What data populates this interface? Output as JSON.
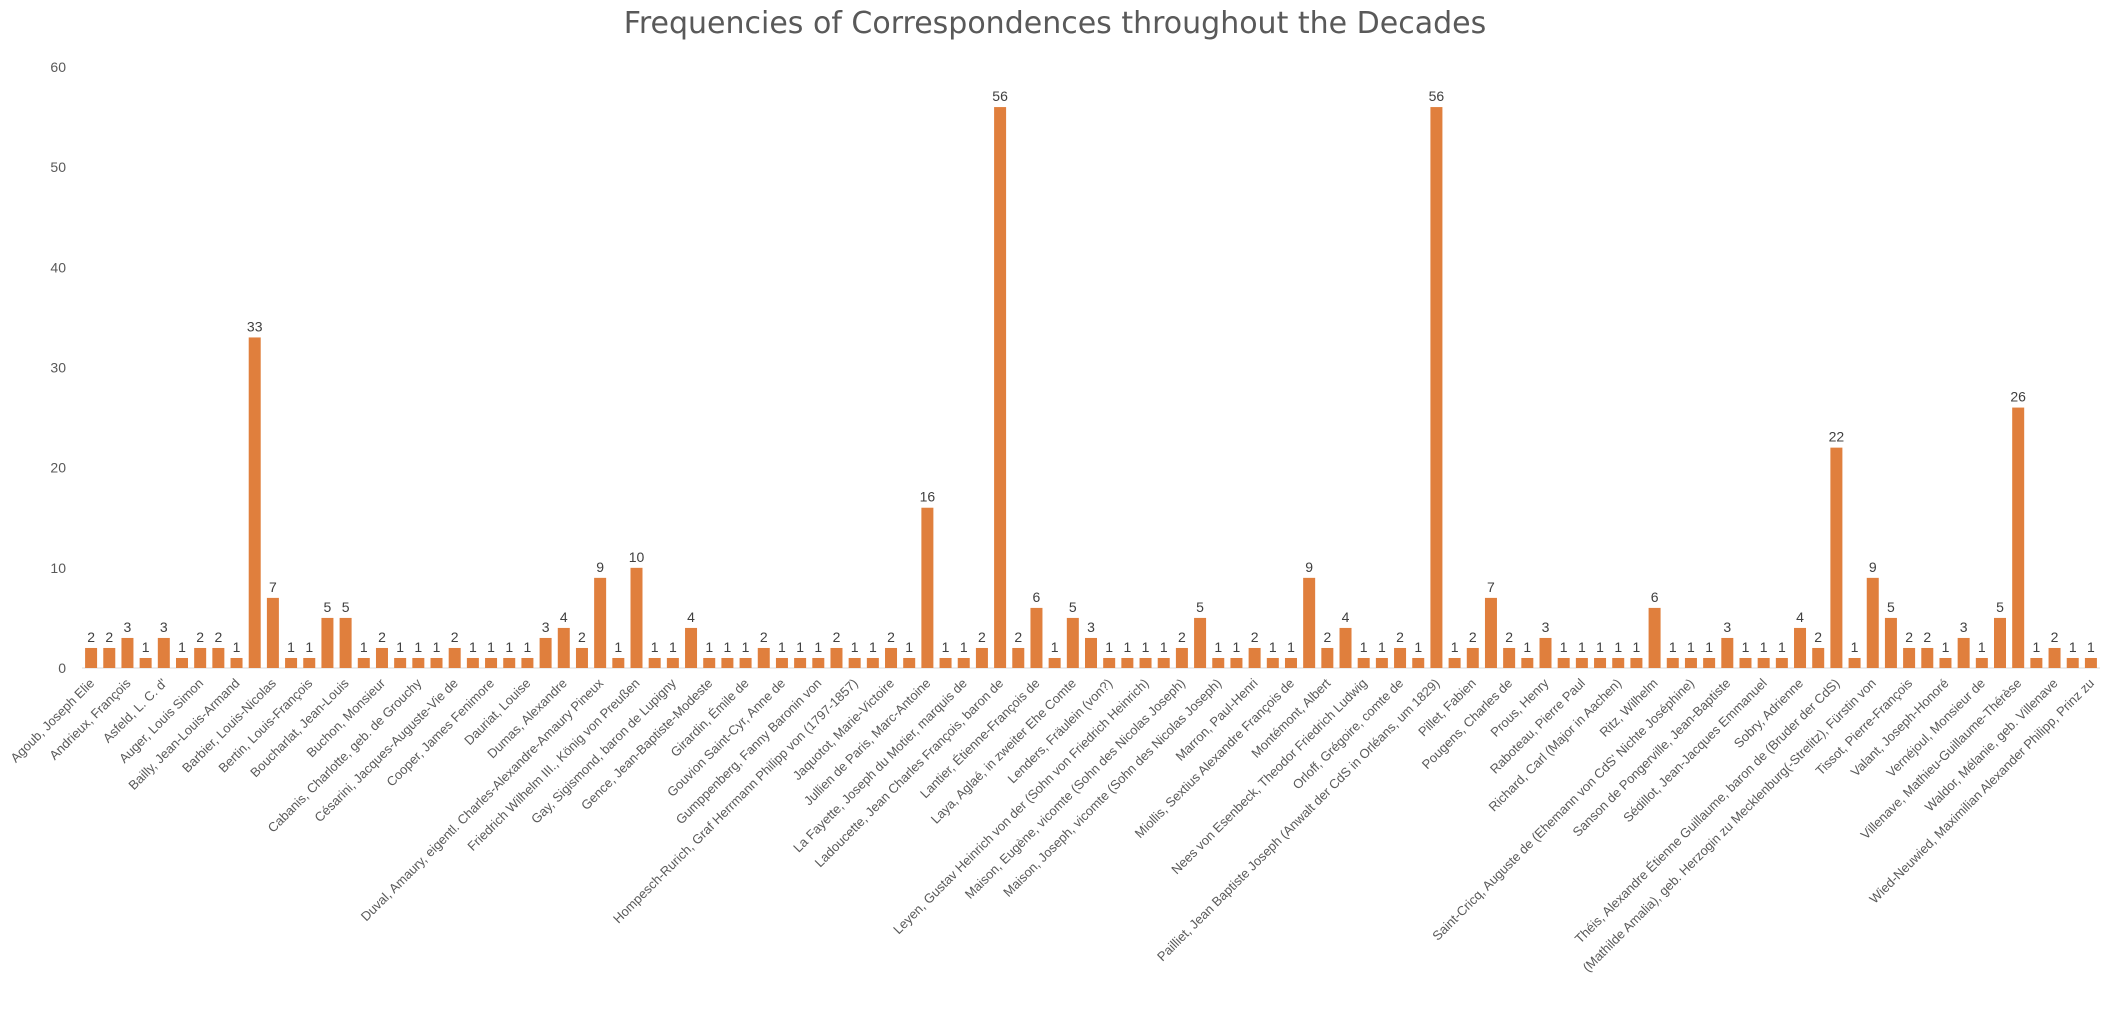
{
  "chart_data": {
    "type": "bar",
    "title": "Frequencies of Correspondences throughout the Decades",
    "xlabel": "",
    "ylabel": "",
    "ylim": [
      0,
      60
    ],
    "yticks": [
      "0",
      "10",
      "20",
      "30",
      "40",
      "50",
      "60"
    ],
    "grid": false,
    "legend": "none",
    "bar_color": "#E07F3D",
    "label_every": 3,
    "categories": [
      "Agoub, Joseph Elie",
      "",
      "Andrieux, François",
      "",
      "Asfeld, L. C. d'",
      "",
      "Auger, Louis Simon",
      "",
      "Bailly, Jean-Louis-Armand",
      "",
      "Barbier, Louis-Nicolas",
      "",
      "Bertin, Louis-François",
      "",
      "Boucharlat, Jean-Louis",
      "",
      "Buchon, Monsieur",
      "",
      "Cabanis, Charlotte, geb. de Grouchy",
      "",
      "Césarini, Jacques-Auguste-Vie de",
      "",
      "Cooper, James Fenimore",
      "",
      "Dauriat, Louise",
      "",
      "Dumas, Alexandre",
      "",
      "Duval, Amaury, eigentl. Charles-Alexandre-Amaury Pineux",
      "",
      "Friedrich Wilhelm III., König von Preußen",
      "",
      "Gay, Sigismond, baron de Lupigny",
      "",
      "Gence, Jean-Baptiste-Modeste",
      "",
      "Girardin, Émile de",
      "",
      "Gouvion Saint-Cyr, Anne de",
      "",
      "Gumppenberg, Fanny Baronin von",
      "",
      "Hompesch-Rurich, Graf Herrmann Philipp von (1797-1857)",
      "",
      "Jaquotot, Marie-Victoire",
      "",
      "Jullien de Paris, Marc-Antoine",
      "",
      "La Fayette, Joseph du Motier, marquis de",
      "",
      "Ladoucette, Jean Charles François, baron de",
      "",
      "Lantier, Étienne-François de",
      "",
      "Laya, Aglaé, in zweiter Ehe Comte",
      "",
      "Lenders, Fräulein (von?)",
      "",
      "Leyen, Gustav Heinrich von der (Sohn von Friedrich Heinrich)",
      "",
      "Maison, Eugène, vicomte (Sohn des Nicolas Joseph)",
      "",
      "Maison, Joseph, vicomte (Sohn des Nicolas Joseph)",
      "",
      "Marron, Paul-Henri",
      "",
      "Miollis, Sextius Alexandre François de",
      "",
      "Montémont, Albert",
      "",
      "Nees von Esenbeck, Theodor Friedrich Ludwig",
      "",
      "Orloff, Grégoire, comte de",
      "",
      "Pailliet, Jean Baptiste Joseph (Anwalt der CdS in Orléans, um 1829)",
      "",
      "Pillet, Fabien",
      "",
      "Pougens, Charles de",
      "",
      "Prous, Henry",
      "",
      "Raboteau, Pierre Paul",
      "",
      "Richard, Carl (Major in Aachen)",
      "",
      "Ritz, Wilhelm",
      "",
      "Saint-Cricq, Auguste de (Ehemann von CdS' Nichte Joséphine)",
      "",
      "Sanson de Pongerville, Jean-Baptiste",
      "",
      "Sédillot, Jean-Jacques Emmanuel",
      "",
      "Sobry, Adrienne",
      "",
      "Théis, Alexandre Étienne Guillaume, baron de (Bruder der CdS)",
      "",
      "(Mathilde Amalia), geb. Herzogin zu Mecklenburg(-Strelitz), Fürstin von",
      "",
      "Tissot, Pierre-François",
      "",
      "Valant, Joseph-Honoré",
      "",
      "Vernéjoul, Monsieur de",
      "",
      "Villenave, Mathieu-Guillaume-Thérèse",
      "",
      "Waldor, Mélanie, geb. Villenave",
      "",
      "Wied-Neuwied, Maximilian Alexander Philipp, Prinz zu"
    ],
    "values": [
      2,
      2,
      3,
      1,
      3,
      1,
      2,
      2,
      1,
      33,
      7,
      1,
      1,
      5,
      5,
      1,
      2,
      1,
      1,
      1,
      2,
      1,
      1,
      1,
      1,
      3,
      4,
      2,
      9,
      1,
      10,
      1,
      1,
      4,
      1,
      1,
      1,
      2,
      1,
      1,
      1,
      2,
      1,
      1,
      2,
      1,
      16,
      1,
      1,
      2,
      56,
      2,
      6,
      1,
      5,
      3,
      1,
      1,
      1,
      1,
      2,
      5,
      1,
      1,
      2,
      1,
      1,
      9,
      2,
      4,
      1,
      1,
      2,
      1,
      56,
      1,
      2,
      7,
      2,
      1,
      3,
      1,
      1,
      1,
      1,
      1,
      6,
      1,
      1,
      1,
      3,
      1,
      1,
      1,
      4,
      2,
      22,
      1,
      9,
      5,
      2,
      2,
      1,
      3,
      1,
      5,
      26,
      1,
      2,
      1,
      1
    ]
  }
}
